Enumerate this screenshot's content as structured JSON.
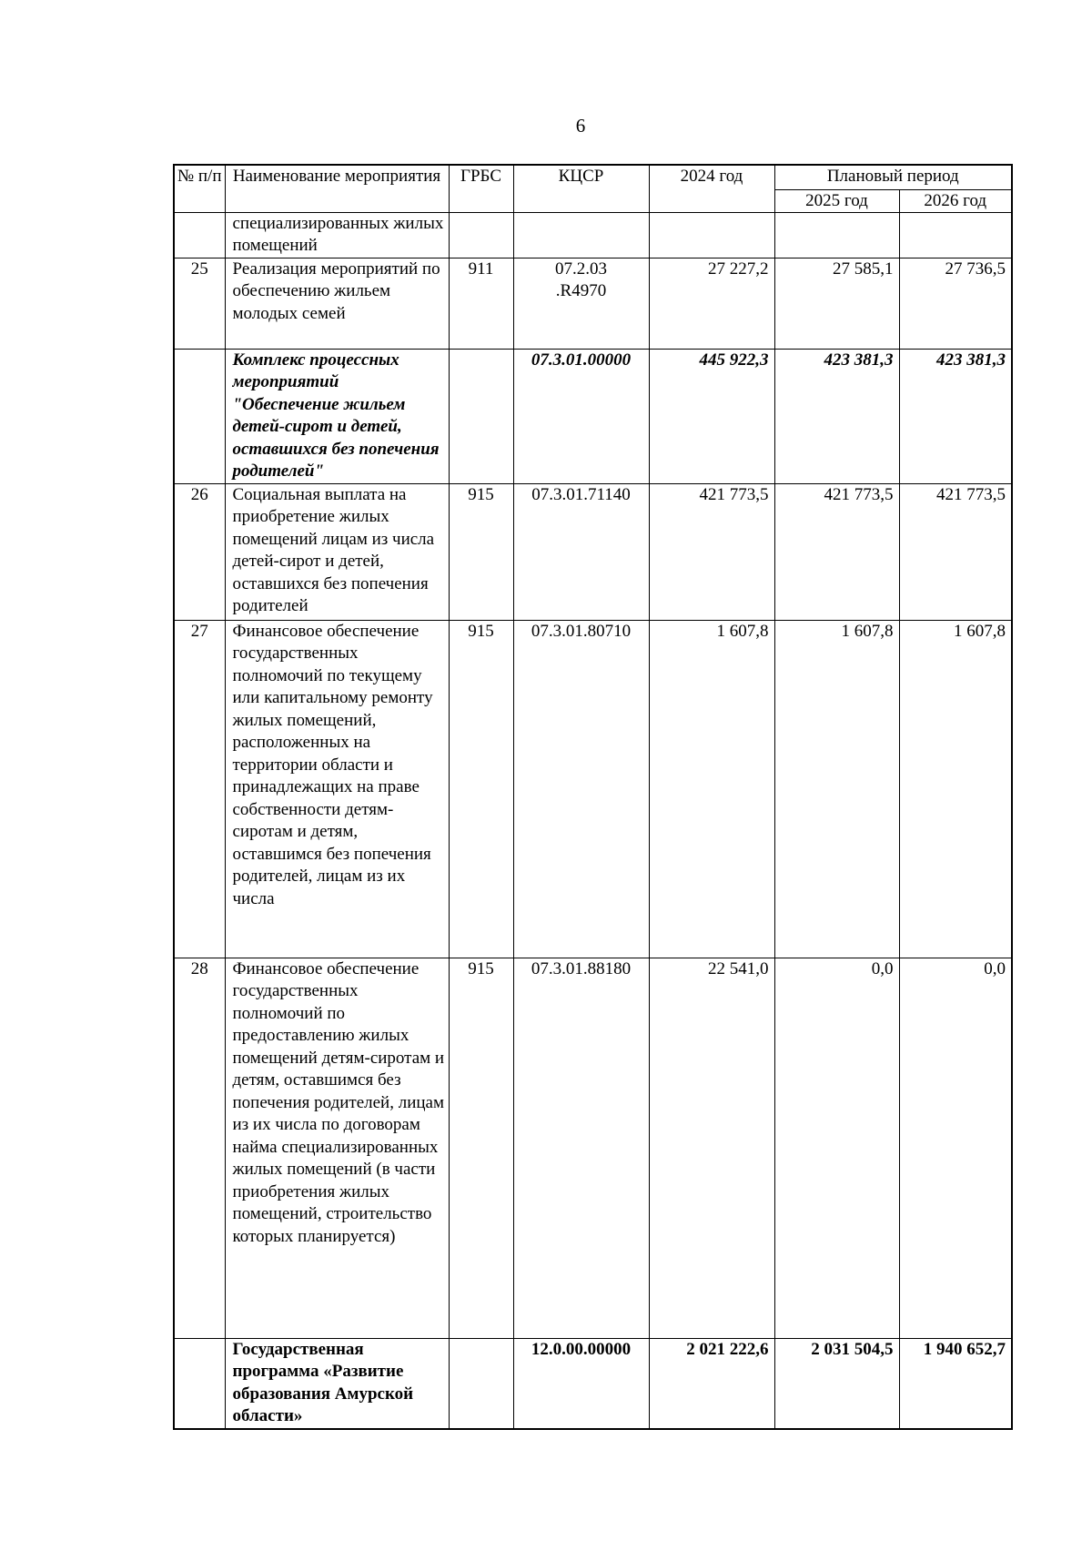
{
  "page_number": "6",
  "headers": {
    "num": "№ п/п",
    "name": "Наименование мероприятия",
    "grbs": "ГРБС",
    "kcsr": "КЦСР",
    "y2024": "2024 год",
    "planned": "Плановый период",
    "y2025": "2025 год",
    "y2026": "2026 год"
  },
  "rows": [
    {
      "num": "",
      "name": "специализированных жилых помещений",
      "grbs": "",
      "kcsr": "",
      "y2024": "",
      "y2025": "",
      "y2026": "",
      "style": "normal"
    },
    {
      "num": "25",
      "name": "Реализация мероприятий по обеспечению жильем молодых семей",
      "grbs": "911",
      "kcsr": "07.2.03 .R4970",
      "y2024": "27 227,2",
      "y2025": "27 585,1",
      "y2026": "27 736,5",
      "style": "normal"
    },
    {
      "num": "",
      "name": "Комплекс процессных мероприятий \"Обеспечение жильем детей-сирот и детей, оставшихся без попечения родителей\"",
      "grbs": "",
      "kcsr": "07.3.01.00000",
      "y2024": "445 922,3",
      "y2025": "423 381,3",
      "y2026": "423 381,3",
      "style": "bold-italic"
    },
    {
      "num": "26",
      "name": "Социальная выплата на приобретение жилых помещений лицам из числа детей-сирот и детей, оставшихся без попечения родителей",
      "grbs": "915",
      "kcsr": "07.3.01.71140",
      "y2024": "421 773,5",
      "y2025": "421 773,5",
      "y2026": "421 773,5",
      "style": "normal"
    },
    {
      "num": "27",
      "name": "Финансовое обеспечение государственных полномочий по текущему или капитальному ремонту жилых помещений, расположенных на территории области и принадлежащих на праве собственности детям-сиротам и детям, оставшимся без попечения родителей, лицам из их числа",
      "grbs": "915",
      "kcsr": "07.3.01.80710",
      "y2024": "1 607,8",
      "y2025": "1 607,8",
      "y2026": "1 607,8",
      "style": "normal"
    },
    {
      "num": "28",
      "name": "Финансовое обеспечение государственных полномочий по предоставлению жилых помещений детям-сиротам и детям, оставшимся без попечения родителей, лицам из их числа по договорам найма специализированных жилых помещений (в части приобретения жилых помещений, строительство которых планируется)",
      "grbs": "915",
      "kcsr": "07.3.01.88180",
      "y2024": "22 541,0",
      "y2025": "0,0",
      "y2026": "0,0",
      "style": "normal"
    },
    {
      "num": "",
      "name": "Государственная программа «Развитие образования Амурской области»",
      "grbs": "",
      "kcsr": "12.0.00.00000",
      "y2024": "2 021 222,6",
      "y2025": "2 031 504,5",
      "y2026": "1 940 652,7",
      "style": "bold"
    }
  ]
}
